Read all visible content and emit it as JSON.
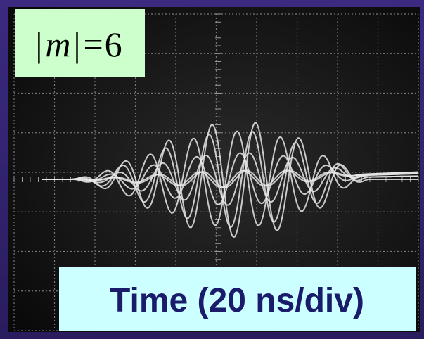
{
  "badge": {
    "parts": [
      "|",
      "m",
      "|",
      "=",
      "6"
    ]
  },
  "caption": "Time (20 ns/div)"
}
